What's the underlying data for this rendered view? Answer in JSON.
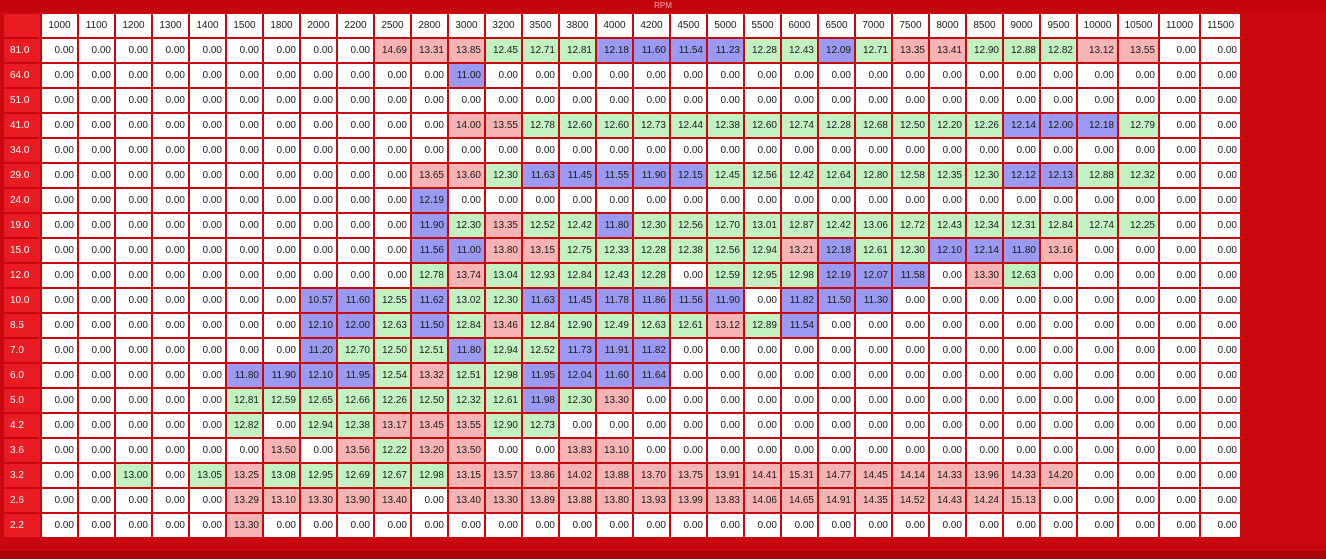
{
  "window": {
    "axis_title": "RPM"
  },
  "colors": {
    "zero": "#ffffff",
    "frame": "#c8080e",
    "header": "#e81c22",
    "lean": "#f6b4b4",
    "rich": "#9a9af2",
    "mid": "#c2f2c2"
  },
  "rpm_columns": [
    "1000",
    "1100",
    "1200",
    "1300",
    "1400",
    "1500",
    "1800",
    "2000",
    "2200",
    "2500",
    "2800",
    "3000",
    "3200",
    "3500",
    "3800",
    "4000",
    "4200",
    "4500",
    "5000",
    "5500",
    "6000",
    "6500",
    "7000",
    "7500",
    "8000",
    "8500",
    "9000",
    "9500",
    "10000",
    "10500",
    "11000",
    "11500"
  ],
  "rows": [
    {
      "load": "81.0",
      "values": [
        "0.00",
        "0.00",
        "0.00",
        "0.00",
        "0.00",
        "0.00",
        "0.00",
        "0.00",
        "0.00",
        "14.69",
        "13.31",
        "13.85",
        "12.45",
        "12.71",
        "12.81",
        "12.18",
        "11.60",
        "11.54",
        "11.23",
        "12.28",
        "12.43",
        "12.09",
        "12.71",
        "13.35",
        "13.41",
        "12.90",
        "12.88",
        "12.82",
        "13.12",
        "13.55",
        "0.00",
        "0.00"
      ]
    },
    {
      "load": "64.0",
      "values": [
        "0.00",
        "0.00",
        "0.00",
        "0.00",
        "0.00",
        "0.00",
        "0.00",
        "0.00",
        "0.00",
        "0.00",
        "0.00",
        "11.00",
        "0.00",
        "0.00",
        "0.00",
        "0.00",
        "0.00",
        "0.00",
        "0.00",
        "0.00",
        "0.00",
        "0.00",
        "0.00",
        "0.00",
        "0.00",
        "0.00",
        "0.00",
        "0.00",
        "0.00",
        "0.00",
        "0.00",
        "0.00"
      ]
    },
    {
      "load": "51.0",
      "values": [
        "0.00",
        "0.00",
        "0.00",
        "0.00",
        "0.00",
        "0.00",
        "0.00",
        "0.00",
        "0.00",
        "0.00",
        "0.00",
        "0.00",
        "0.00",
        "0.00",
        "0.00",
        "0.00",
        "0.00",
        "0.00",
        "0.00",
        "0.00",
        "0.00",
        "0.00",
        "0.00",
        "0.00",
        "0.00",
        "0.00",
        "0.00",
        "0.00",
        "0.00",
        "0.00",
        "0.00",
        "0.00"
      ]
    },
    {
      "load": "41.0",
      "values": [
        "0.00",
        "0.00",
        "0.00",
        "0.00",
        "0.00",
        "0.00",
        "0.00",
        "0.00",
        "0.00",
        "0.00",
        "0.00",
        "14.00",
        "13.55",
        "12.78",
        "12.60",
        "12.60",
        "12.73",
        "12.44",
        "12.38",
        "12.60",
        "12.74",
        "12.28",
        "12.68",
        "12.50",
        "12.20",
        "12.26",
        "12.14",
        "12.00",
        "12.18",
        "12.79",
        "0.00",
        "0.00"
      ]
    },
    {
      "load": "34.0",
      "values": [
        "0.00",
        "0.00",
        "0.00",
        "0.00",
        "0.00",
        "0.00",
        "0.00",
        "0.00",
        "0.00",
        "0.00",
        "0.00",
        "0.00",
        "0.00",
        "0.00",
        "0.00",
        "0.00",
        "0.00",
        "0.00",
        "0.00",
        "0.00",
        "0.00",
        "0.00",
        "0.00",
        "0.00",
        "0.00",
        "0.00",
        "0.00",
        "0.00",
        "0.00",
        "0.00",
        "0.00",
        "0.00"
      ]
    },
    {
      "load": "29.0",
      "values": [
        "0.00",
        "0.00",
        "0.00",
        "0.00",
        "0.00",
        "0.00",
        "0.00",
        "0.00",
        "0.00",
        "0.00",
        "13.65",
        "13.60",
        "12.30",
        "11.63",
        "11.45",
        "11.55",
        "11.90",
        "12.15",
        "12.45",
        "12.56",
        "12.42",
        "12.64",
        "12.80",
        "12.58",
        "12.35",
        "12.30",
        "12.12",
        "12.13",
        "12.88",
        "12.32",
        "0.00",
        "0.00"
      ]
    },
    {
      "load": "24.0",
      "values": [
        "0.00",
        "0.00",
        "0.00",
        "0.00",
        "0.00",
        "0.00",
        "0.00",
        "0.00",
        "0.00",
        "0.00",
        "12.19",
        "0.00",
        "0.00",
        "0.00",
        "0.00",
        "0.00",
        "0.00",
        "0.00",
        "0.00",
        "0.00",
        "0.00",
        "0.00",
        "0.00",
        "0.00",
        "0.00",
        "0.00",
        "0.00",
        "0.00",
        "0.00",
        "0.00",
        "0.00",
        "0.00"
      ]
    },
    {
      "load": "19.0",
      "values": [
        "0.00",
        "0.00",
        "0.00",
        "0.00",
        "0.00",
        "0.00",
        "0.00",
        "0.00",
        "0.00",
        "0.00",
        "11.90",
        "12.30",
        "13.35",
        "12.52",
        "12.42",
        "11.80",
        "12.30",
        "12.56",
        "12.70",
        "13.01",
        "12.87",
        "12.42",
        "13.06",
        "12.72",
        "12.43",
        "12.34",
        "12.31",
        "12.84",
        "12.74",
        "12.25",
        "0.00",
        "0.00"
      ]
    },
    {
      "load": "15.0",
      "values": [
        "0.00",
        "0.00",
        "0.00",
        "0.00",
        "0.00",
        "0.00",
        "0.00",
        "0.00",
        "0.00",
        "0.00",
        "11.56",
        "11.00",
        "13.80",
        "13.15",
        "12.75",
        "12.33",
        "12.28",
        "12.38",
        "12.56",
        "12.94",
        "13.21",
        "12.18",
        "12.61",
        "12.30",
        "12.10",
        "12.14",
        "11.80",
        "13.16",
        "0.00",
        "0.00",
        "0.00",
        "0.00"
      ]
    },
    {
      "load": "12.0",
      "values": [
        "0.00",
        "0.00",
        "0.00",
        "0.00",
        "0.00",
        "0.00",
        "0.00",
        "0.00",
        "0.00",
        "0.00",
        "12.78",
        "13.74",
        "13.04",
        "12.93",
        "12.84",
        "12.43",
        "12.28",
        "0.00",
        "12.59",
        "12.95",
        "12.98",
        "12.19",
        "12.07",
        "11.58",
        "0.00",
        "13.30",
        "12.63",
        "0.00",
        "0.00",
        "0.00",
        "0.00",
        "0.00"
      ]
    },
    {
      "load": "10.0",
      "values": [
        "0.00",
        "0.00",
        "0.00",
        "0.00",
        "0.00",
        "0.00",
        "0.00",
        "10.57",
        "11.60",
        "12.55",
        "11.62",
        "13.02",
        "12.30",
        "11.63",
        "11.45",
        "11.78",
        "11.86",
        "11.56",
        "11.90",
        "0.00",
        "11.82",
        "11.50",
        "11.30",
        "0.00",
        "0.00",
        "0.00",
        "0.00",
        "0.00",
        "0.00",
        "0.00",
        "0.00",
        "0.00"
      ]
    },
    {
      "load": "8.5",
      "values": [
        "0.00",
        "0.00",
        "0.00",
        "0.00",
        "0.00",
        "0.00",
        "0.00",
        "12.10",
        "12.00",
        "12.63",
        "11.50",
        "12.84",
        "13.46",
        "12.84",
        "12.90",
        "12.49",
        "12.63",
        "12.61",
        "13.12",
        "12.89",
        "11.54",
        "0.00",
        "0.00",
        "0.00",
        "0.00",
        "0.00",
        "0.00",
        "0.00",
        "0.00",
        "0.00",
        "0.00",
        "0.00"
      ]
    },
    {
      "load": "7.0",
      "values": [
        "0.00",
        "0.00",
        "0.00",
        "0.00",
        "0.00",
        "0.00",
        "0.00",
        "11.20",
        "12.70",
        "12.50",
        "12.51",
        "11.80",
        "12.94",
        "12.52",
        "11.73",
        "11.91",
        "11.82",
        "0.00",
        "0.00",
        "0.00",
        "0.00",
        "0.00",
        "0.00",
        "0.00",
        "0.00",
        "0.00",
        "0.00",
        "0.00",
        "0.00",
        "0.00",
        "0.00",
        "0.00"
      ]
    },
    {
      "load": "6.0",
      "values": [
        "0.00",
        "0.00",
        "0.00",
        "0.00",
        "0.00",
        "11.80",
        "11.90",
        "12.10",
        "11.95",
        "12.54",
        "13.32",
        "12.51",
        "12.98",
        "11.95",
        "12.04",
        "11.60",
        "11.64",
        "0.00",
        "0.00",
        "0.00",
        "0.00",
        "0.00",
        "0.00",
        "0.00",
        "0.00",
        "0.00",
        "0.00",
        "0.00",
        "0.00",
        "0.00",
        "0.00",
        "0.00"
      ]
    },
    {
      "load": "5.0",
      "values": [
        "0.00",
        "0.00",
        "0.00",
        "0.00",
        "0.00",
        "12.81",
        "12.59",
        "12.65",
        "12.66",
        "12.26",
        "12.50",
        "12.32",
        "12.61",
        "11.98",
        "12.30",
        "13.30",
        "0.00",
        "0.00",
        "0.00",
        "0.00",
        "0.00",
        "0.00",
        "0.00",
        "0.00",
        "0.00",
        "0.00",
        "0.00",
        "0.00",
        "0.00",
        "0.00",
        "0.00",
        "0.00"
      ]
    },
    {
      "load": "4.2",
      "values": [
        "0.00",
        "0.00",
        "0.00",
        "0.00",
        "0.00",
        "12.82",
        "0.00",
        "12.94",
        "12.38",
        "13.17",
        "13.45",
        "13.55",
        "12.90",
        "12.73",
        "0.00",
        "0.00",
        "0.00",
        "0.00",
        "0.00",
        "0.00",
        "0.00",
        "0.00",
        "0.00",
        "0.00",
        "0.00",
        "0.00",
        "0.00",
        "0.00",
        "0.00",
        "0.00",
        "0.00",
        "0.00"
      ]
    },
    {
      "load": "3.6",
      "values": [
        "0.00",
        "0.00",
        "0.00",
        "0.00",
        "0.00",
        "0.00",
        "13.50",
        "0.00",
        "13.56",
        "12.22",
        "13.20",
        "13.50",
        "0.00",
        "0.00",
        "13.83",
        "13.10",
        "0.00",
        "0.00",
        "0.00",
        "0.00",
        "0.00",
        "0.00",
        "0.00",
        "0.00",
        "0.00",
        "0.00",
        "0.00",
        "0.00",
        "0.00",
        "0.00",
        "0.00",
        "0.00"
      ]
    },
    {
      "load": "3.2",
      "values": [
        "0.00",
        "0.00",
        "13.00",
        "0.00",
        "13.05",
        "13.25",
        "13.08",
        "12.95",
        "12.69",
        "12.67",
        "12.98",
        "13.15",
        "13.57",
        "13.86",
        "14.02",
        "13.88",
        "13.70",
        "13.75",
        "13.91",
        "14.41",
        "15.31",
        "14.77",
        "14.45",
        "14.14",
        "14.33",
        "13.96",
        "14.33",
        "14.20",
        "0.00",
        "0.00",
        "0.00",
        "0.00"
      ]
    },
    {
      "load": "2.6",
      "values": [
        "0.00",
        "0.00",
        "0.00",
        "0.00",
        "0.00",
        "13.29",
        "13.10",
        "13.30",
        "13.90",
        "13.40",
        "0.00",
        "13.40",
        "13.30",
        "13.89",
        "13.88",
        "13.80",
        "13.93",
        "13.99",
        "13.83",
        "14.06",
        "14.65",
        "14.91",
        "14.35",
        "14.52",
        "14.43",
        "14.24",
        "15.13",
        "0.00",
        "0.00",
        "0.00",
        "0.00",
        "0.00"
      ]
    },
    {
      "load": "2.2",
      "values": [
        "0.00",
        "0.00",
        "0.00",
        "0.00",
        "0.00",
        "13.30",
        "0.00",
        "0.00",
        "0.00",
        "0.00",
        "0.00",
        "0.00",
        "0.00",
        "0.00",
        "0.00",
        "0.00",
        "0.00",
        "0.00",
        "0.00",
        "0.00",
        "0.00",
        "0.00",
        "0.00",
        "0.00",
        "0.00",
        "0.00",
        "0.00",
        "0.00",
        "0.00",
        "0.00",
        "0.00",
        "0.00"
      ]
    }
  ]
}
